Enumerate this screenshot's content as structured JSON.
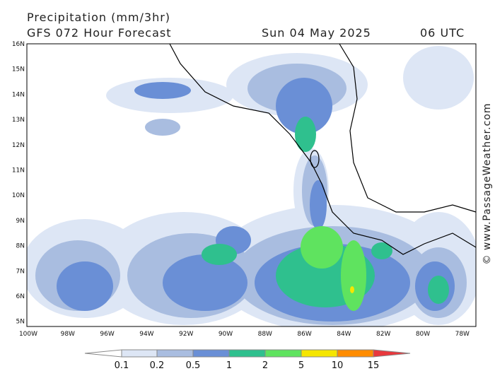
{
  "header": {
    "title": "Precipitation (mm/3hr)",
    "model": "GFS 072 Hour Forecast",
    "date": "Sun 04 May 2025",
    "time": "06 UTC"
  },
  "axes": {
    "lat_labels": [
      "16N",
      "15N",
      "14N",
      "13N",
      "12N",
      "11N",
      "10N",
      "9N",
      "8N",
      "7N",
      "6N",
      "5N"
    ],
    "lon_labels": [
      "100W",
      "98W",
      "96W",
      "94W",
      "92W",
      "90W",
      "88W",
      "86W",
      "84W",
      "82W",
      "80W",
      "78W"
    ]
  },
  "colorbar": {
    "labels": [
      "0.1",
      "0.2",
      "0.5",
      "1",
      "2",
      "5",
      "10",
      "15"
    ]
  },
  "watermark": "© www.PassageWeather.com"
}
